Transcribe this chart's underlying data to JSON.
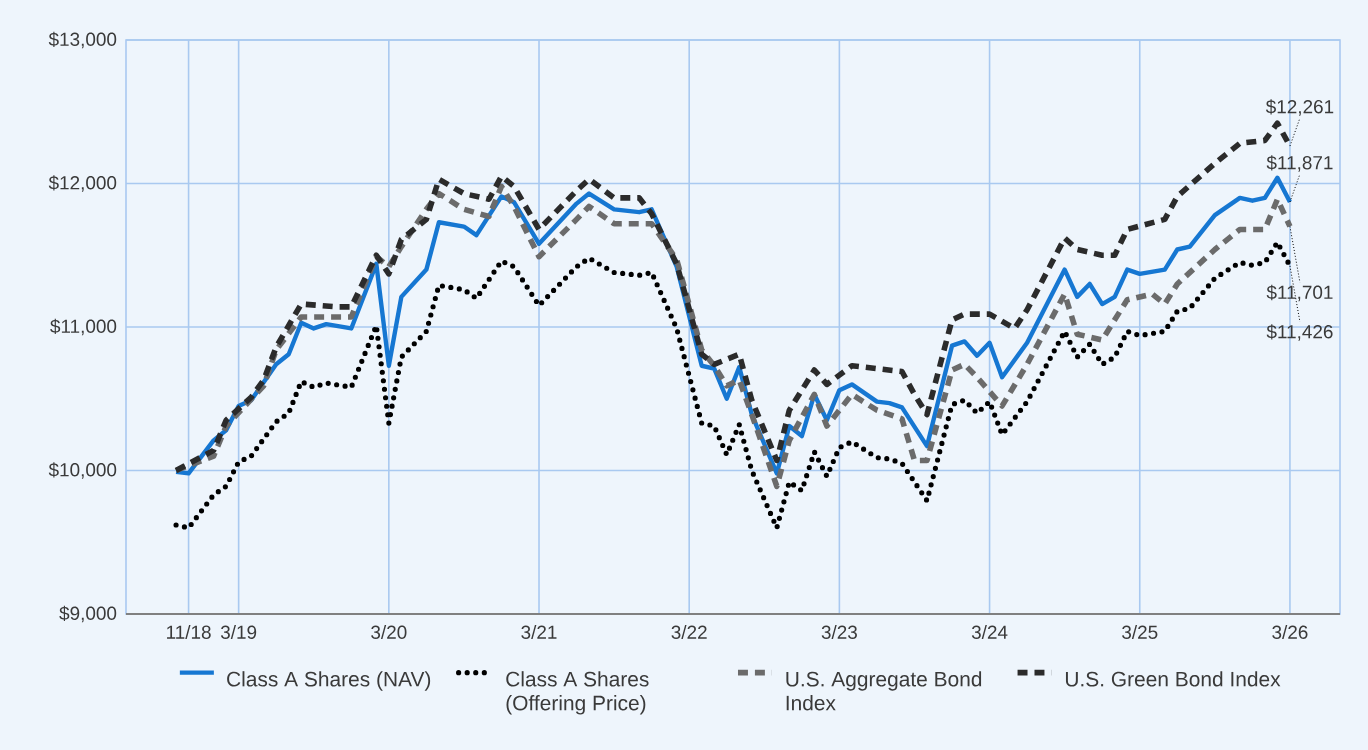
{
  "chart_data": {
    "type": "line",
    "xlim": [
      "2018-06",
      "2026-07"
    ],
    "ylim": [
      9000,
      13000
    ],
    "xticks": [
      {
        "value": "2018-11",
        "label": "11/18"
      },
      {
        "value": "2019-03",
        "label": "3/19"
      },
      {
        "value": "2020-03",
        "label": "3/20"
      },
      {
        "value": "2021-03",
        "label": "3/21"
      },
      {
        "value": "2022-03",
        "label": "3/22"
      },
      {
        "value": "2023-03",
        "label": "3/23"
      },
      {
        "value": "2024-03",
        "label": "3/24"
      },
      {
        "value": "2025-03",
        "label": "3/25"
      },
      {
        "value": "2026-03",
        "label": "3/26"
      }
    ],
    "yticks": [
      {
        "value": 9000,
        "label": "$9,000"
      },
      {
        "value": 10000,
        "label": "$10,000"
      },
      {
        "value": 11000,
        "label": "$11,000"
      },
      {
        "value": 12000,
        "label": "$12,000"
      },
      {
        "value": 13000,
        "label": "$13,000"
      }
    ],
    "grid": true,
    "legend": "bottom",
    "marker": "none",
    "x": [
      "2018-10",
      "2018-11",
      "2019-01",
      "2019-02",
      "2019-03",
      "2019-04",
      "2019-06",
      "2019-07",
      "2019-08",
      "2019-09",
      "2019-10",
      "2019-12",
      "2020-02",
      "2020-03",
      "2020-04",
      "2020-06",
      "2020-07",
      "2020-09",
      "2020-10",
      "2020-12",
      "2021-01",
      "2021-03",
      "2021-06",
      "2021-07",
      "2021-09",
      "2021-11",
      "2021-12",
      "2022-02",
      "2022-04",
      "2022-05",
      "2022-06",
      "2022-07",
      "2022-08",
      "2022-10",
      "2022-11",
      "2022-12",
      "2023-01",
      "2023-02",
      "2023-03",
      "2023-04",
      "2023-06",
      "2023-07",
      "2023-08",
      "2023-10",
      "2023-12",
      "2024-01",
      "2024-02",
      "2024-03",
      "2024-04",
      "2024-06",
      "2024-09",
      "2024-10",
      "2024-11",
      "2024-12",
      "2025-01",
      "2025-02",
      "2025-03",
      "2025-05",
      "2025-06",
      "2025-07",
      "2025-09",
      "2025-11",
      "2025-12",
      "2026-01",
      "2026-02",
      "2026-03"
    ],
    "series": [
      {
        "name": "Class A Shares (NAV)",
        "color": "#1677d2",
        "line_style": "solid",
        "values": [
          9990,
          9980,
          10210,
          10280,
          10450,
          10490,
          10740,
          10810,
          11030,
          10990,
          11020,
          10990,
          11440,
          10730,
          11210,
          11400,
          11730,
          11700,
          11640,
          11910,
          11870,
          11580,
          11860,
          11930,
          11820,
          11800,
          11820,
          11420,
          10730,
          10710,
          10500,
          10720,
          10390,
          9980,
          10310,
          10240,
          10530,
          10350,
          10560,
          10600,
          10480,
          10470,
          10440,
          10170,
          10870,
          10900,
          10800,
          10890,
          10650,
          10890,
          11400,
          11210,
          11300,
          11160,
          11210,
          11400,
          11370,
          11400,
          11540,
          11560,
          11780,
          11900,
          11880,
          11900,
          12040,
          11871
        ]
      },
      {
        "name": "Class A Shares (Offering Price)",
        "color": "#000000",
        "line_style": "dotted",
        "values": [
          9620,
          9600,
          9830,
          9890,
          10060,
          10100,
          10340,
          10400,
          10620,
          10580,
          10610,
          10580,
          11010,
          10330,
          10790,
          10970,
          11290,
          11260,
          11200,
          11460,
          11420,
          11150,
          11420,
          11480,
          11380,
          11360,
          11380,
          10990,
          10330,
          10310,
          10110,
          10320,
          10000,
          9600,
          9920,
          9860,
          10130,
          9960,
          10160,
          10200,
          10090,
          10080,
          10050,
          9790,
          10460,
          10490,
          10400,
          10480,
          10250,
          10480,
          10970,
          10790,
          10880,
          10740,
          10790,
          10970,
          10940,
          10970,
          11110,
          11130,
          11340,
          11450,
          11430,
          11450,
          11590,
          11426
        ]
      },
      {
        "name": "U.S. Aggregate Bond Index",
        "color": "#6b6b6b",
        "line_style": "dashed",
        "x": [
          "2018-10",
          "2019-01",
          "2019-02",
          "2019-05",
          "2019-06",
          "2019-08",
          "2019-11",
          "2019-12",
          "2020-02",
          "2020-03",
          "2020-04",
          "2020-06",
          "2020-07",
          "2020-09",
          "2020-11",
          "2020-12",
          "2021-01",
          "2021-03",
          "2021-06",
          "2021-07",
          "2021-09",
          "2021-12",
          "2022-02",
          "2022-04",
          "2022-05",
          "2022-06",
          "2022-07",
          "2022-08",
          "2022-10",
          "2022-11",
          "2023-01",
          "2023-02",
          "2023-04",
          "2023-06",
          "2023-08",
          "2023-09",
          "2023-10",
          "2023-12",
          "2024-01",
          "2024-02",
          "2024-04",
          "2024-06",
          "2024-09",
          "2024-10",
          "2024-12",
          "2025-02",
          "2025-04",
          "2025-05",
          "2025-06",
          "2025-09",
          "2025-11",
          "2026-01",
          "2026-02",
          "2026-03"
        ],
        "values": [
          10000,
          10100,
          10310,
          10590,
          10840,
          11070,
          11070,
          11070,
          11490,
          11420,
          11560,
          11820,
          11930,
          11820,
          11770,
          11980,
          11840,
          11490,
          11750,
          11840,
          11720,
          11720,
          11470,
          10840,
          10730,
          10590,
          10630,
          10390,
          9890,
          10210,
          10530,
          10310,
          10530,
          10420,
          10360,
          10070,
          10070,
          10700,
          10740,
          10650,
          10450,
          10740,
          11230,
          10950,
          10910,
          11190,
          11230,
          11160,
          11300,
          11540,
          11680,
          11680,
          11890,
          11701
        ]
      },
      {
        "name": "U.S. Green Bond Index",
        "color": "#2b2b2b",
        "line_style": "dashed",
        "x": [
          "2018-10",
          "2019-01",
          "2019-02",
          "2019-04",
          "2019-05",
          "2019-06",
          "2019-08",
          "2019-11",
          "2019-12",
          "2020-02",
          "2020-03",
          "2020-04",
          "2020-06",
          "2020-07",
          "2020-09",
          "2020-11",
          "2020-12",
          "2021-01",
          "2021-03",
          "2021-06",
          "2021-07",
          "2021-09",
          "2021-11",
          "2021-12",
          "2022-02",
          "2022-04",
          "2022-05",
          "2022-07",
          "2022-08",
          "2022-10",
          "2022-11",
          "2023-01",
          "2023-02",
          "2023-04",
          "2023-08",
          "2023-09",
          "2023-10",
          "2023-12",
          "2024-01",
          "2024-03",
          "2024-05",
          "2024-06",
          "2024-09",
          "2024-10",
          "2024-12",
          "2025-01",
          "2025-02",
          "2025-05",
          "2025-06",
          "2025-09",
          "2025-11",
          "2026-01",
          "2026-02",
          "2026-03"
        ],
        "values": [
          10000,
          10140,
          10350,
          10510,
          10630,
          10860,
          11160,
          11140,
          11140,
          11500,
          11370,
          11610,
          11750,
          12030,
          11930,
          11890,
          12050,
          11980,
          11680,
          11950,
          12030,
          11900,
          11900,
          11790,
          11440,
          10810,
          10740,
          10810,
          10490,
          10070,
          10420,
          10700,
          10600,
          10730,
          10690,
          10530,
          10390,
          11050,
          11090,
          11090,
          10990,
          11120,
          11620,
          11540,
          11500,
          11500,
          11680,
          11750,
          11910,
          12140,
          12280,
          12300,
          12420,
          12261
        ]
      }
    ],
    "annotations": [
      {
        "text": "$12,261",
        "x": "2026-03",
        "y": 12261
      },
      {
        "text": "$11,871",
        "x": "2026-03",
        "y": 11871
      },
      {
        "text": "$11,701",
        "x": "2026-03",
        "y": 11701
      },
      {
        "text": "$11,426",
        "x": "2026-03",
        "y": 11426
      }
    ]
  }
}
